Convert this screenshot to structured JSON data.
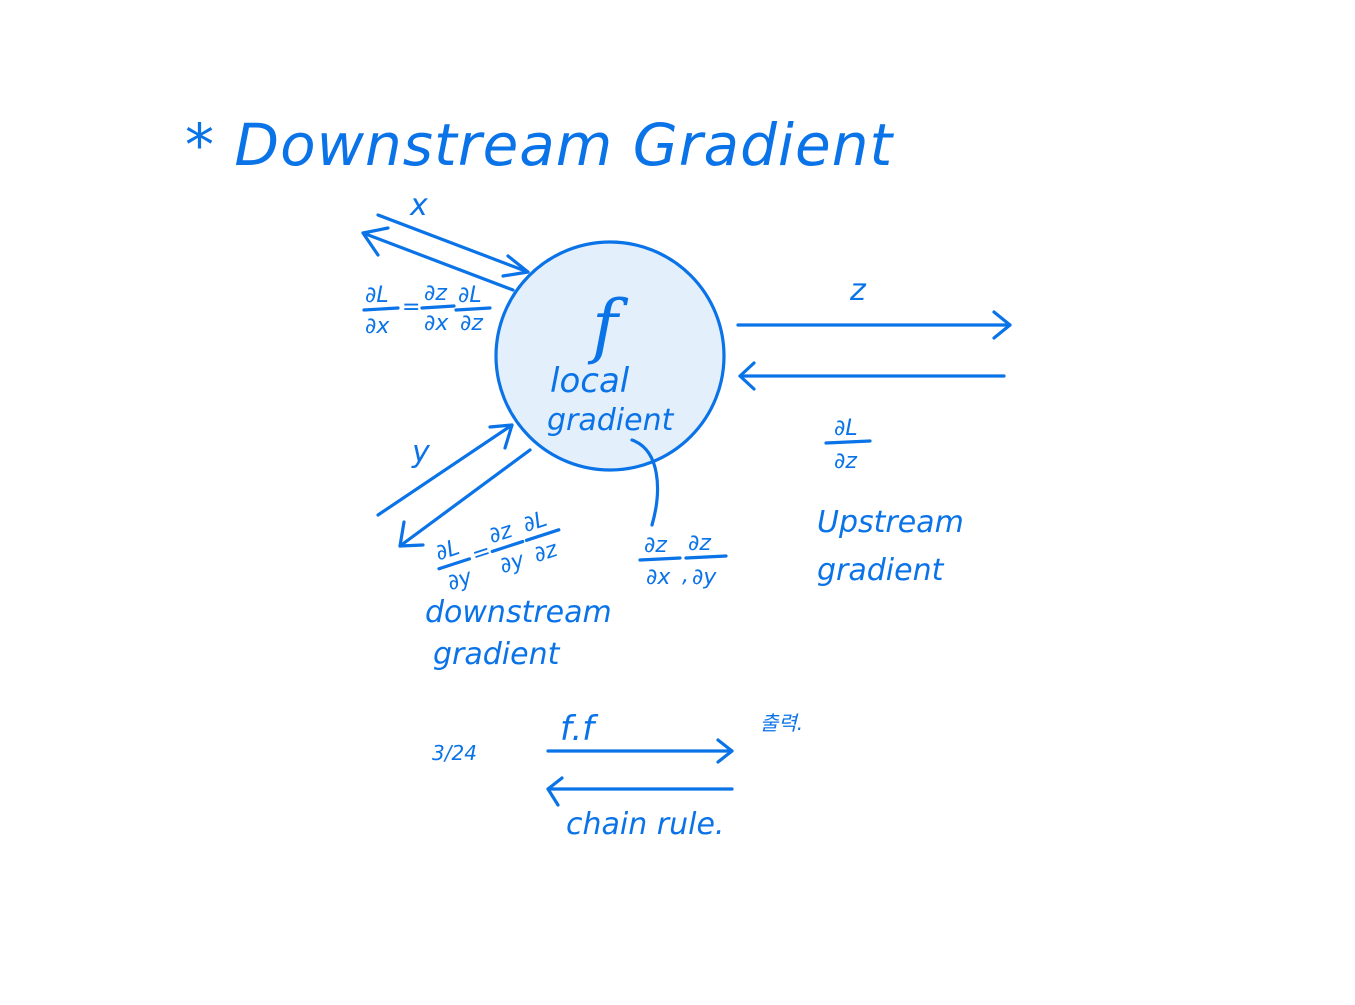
{
  "title": "* Downstream Gradient",
  "node": {
    "function": "f",
    "label_line1": "local",
    "label_line2": "gradient"
  },
  "inputs": {
    "x": "x",
    "y": "y"
  },
  "output": {
    "z": "z"
  },
  "expressions": {
    "dL_dx_lhs_num": "∂L",
    "dL_dx_lhs_den": "∂x",
    "dL_dx_rhs1_num": "∂z",
    "dL_dx_rhs1_den": "∂x",
    "dL_dx_rhs2_num": "∂L",
    "dL_dx_rhs2_den": "∂z",
    "dL_dy_lhs_num": "∂L",
    "dL_dy_lhs_den": "∂y",
    "dL_dy_rhs1_num": "∂z",
    "dL_dy_rhs1_den": "∂y",
    "dL_dy_rhs2_num": "∂L",
    "dL_dy_rhs2_den": "∂z",
    "local_a_num": "∂z",
    "local_a_den": "∂x",
    "local_b_num": "∂z",
    "local_b_den": "∂y",
    "upstream_num": "∂L",
    "upstream_den": "∂z"
  },
  "labels": {
    "downstream_line1": "downstream",
    "downstream_line2": "gradient",
    "upstream_line1": "Upstream",
    "upstream_line2": "gradient"
  },
  "bottom": {
    "left_note": "3/24",
    "forward_label": "f.f",
    "backward_label": "chain rule.",
    "right_note": "출력."
  },
  "colors": {
    "ink": "#0a73e8",
    "node_fill": "#e3effb",
    "background": "#ffffff"
  }
}
